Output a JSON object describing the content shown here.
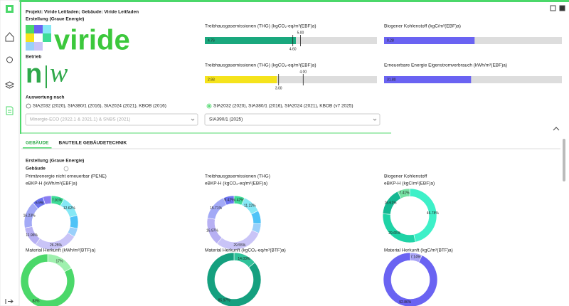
{
  "header": {
    "project": "Projekt: Viride Leitfaden; Gebäude: Viride Leitfaden",
    "section": "Erstellung (Graue Energie)",
    "logo_text": "viride",
    "betrieb": "Betrieb",
    "logo_n": "n",
    "logo_w": "w"
  },
  "auswertung": {
    "label": "Auswertung nach",
    "options": [
      "SIA2032 (2020), SIA380/1 (2016), SIA2024 (2021), KBOB (2016)",
      "SIA2032 (2020), SIA380/1 (2016), SIA2024 (2021), KBOB (v7 2025)"
    ],
    "selected": 1,
    "selects": [
      "Minergie-ECO (2022.1 & 2021.1) & SNBS (2021)",
      "SIA390/1 (2025)"
    ]
  },
  "tabs": {
    "items": [
      "GEBÄUDE",
      "BAUTEILE GEBÄUDETECHNIK"
    ],
    "active": 0
  },
  "section": {
    "title": "Erstellung (Graue Energie)",
    "subtitle": "Gebäude"
  },
  "chart_data": [
    {
      "type": "bar",
      "title": "Treibhausgasemissionen (THG) (kgCO₂-eq/m²(EBF)a)",
      "values": [
        4.76
      ],
      "color": "#1aa87e",
      "xlim": [
        0,
        9
      ],
      "xticks": [
        {
          "value": 5,
          "label": "5.00"
        },
        {
          "value": 4.6,
          "label": "4.60"
        }
      ]
    },
    {
      "type": "bar",
      "title": "Biogener Kohlenstoff (kgC/m²(EBF)a)",
      "values": [
        0.28
      ],
      "color": "#6a63f2",
      "xlim": [
        0,
        0.55
      ]
    },
    {
      "type": "bar",
      "title": "Treibhausgasemissionen (THG) (kgCO₂-eq/m²(EBF)a)",
      "values": [
        2.93
      ],
      "color": "#f5e31c",
      "xlim": [
        0,
        7
      ],
      "xticks": [
        {
          "value": 4,
          "label": "4.00"
        },
        {
          "value": 3,
          "label": "3.00"
        }
      ]
    },
    {
      "type": "bar",
      "title": "Erneuerbare Energie Eigenstromverbrauch (kWh/m²(EBF)a)",
      "values": [
        31.8
      ],
      "value_labels": [
        "31.80"
      ],
      "color": "#6a63f2",
      "xlim": [
        0,
        65
      ]
    },
    {
      "type": "pie",
      "title": "Primärenergie nicht erneuerbar (PENE)",
      "subtitle": "eBKP-H (kWh/m²(EBF)a)",
      "values": [
        7.91,
        12.62,
        8,
        5.13,
        26.25,
        11.96,
        16.23,
        6.9,
        5
      ],
      "value_labels": [
        "7.91%",
        "12.62%",
        null,
        null,
        "26.25%",
        "11.96%",
        "16.23%",
        "6.9%",
        null
      ],
      "colors": [
        "#3ddc97",
        "#86e8f5",
        "#4fc3f7",
        "#9ad0fa",
        "#c9c4f7",
        "#b7b0f3",
        "#a2a9f6",
        "#6c74f0",
        "#8a7ef2"
      ]
    },
    {
      "type": "pie",
      "title": "Treibhausgasemissionen (THG)",
      "subtitle": "eBKP-H (kgCO₂-eq/m²(EBF)a)",
      "values": [
        6.42,
        11.22,
        8,
        5.71,
        29.55,
        16.97,
        15.71,
        6.42
      ],
      "value_labels": [
        "6.42%",
        "11.22%",
        null,
        null,
        "29.55%",
        "16.97%",
        "15.71%",
        "6.42%"
      ],
      "colors": [
        "#3ddc97",
        "#86e8f5",
        "#4fc3f7",
        "#9ad0fa",
        "#c9c4f7",
        "#b7b0f3",
        "#a2a9f6",
        "#6c74f0"
      ]
    },
    {
      "type": "pie",
      "title": "Biogener Kohlenstoff",
      "subtitle": "eBKP-H (kgC/m²(EBF)a)",
      "values": [
        46.78,
        29.65,
        16.61,
        7.41
      ],
      "value_labels": [
        "46.78%",
        "29.65%",
        "16.61%",
        "7.41%"
      ],
      "colors": [
        "#3ef0c8",
        "#1fd3a6",
        "#14b892",
        "#76e3a4"
      ]
    },
    {
      "type": "pie",
      "title": "Material Herkunft (kWh/m²(BTF)a)",
      "values": [
        17,
        83
      ],
      "value_labels": [
        "17%",
        "83%"
      ],
      "colors": [
        "#9ff0ae",
        "#4bd86a"
      ]
    },
    {
      "type": "pie",
      "title": "Material Herkunft (kgCO₂-eq/m²(BTF)a)",
      "values": [
        14.03,
        85.97
      ],
      "value_labels": [
        "14.03%",
        "85.97%"
      ],
      "colors": [
        "#30c29a",
        "#15a07f"
      ]
    },
    {
      "type": "pie",
      "title": "Material Herkunft (kgC/m²(BTF)a)",
      "values": [
        7.14,
        92.86
      ],
      "value_labels": [
        "7.14%",
        "92.86%"
      ],
      "colors": [
        "#a9a4f7",
        "#6a63f2"
      ]
    }
  ]
}
